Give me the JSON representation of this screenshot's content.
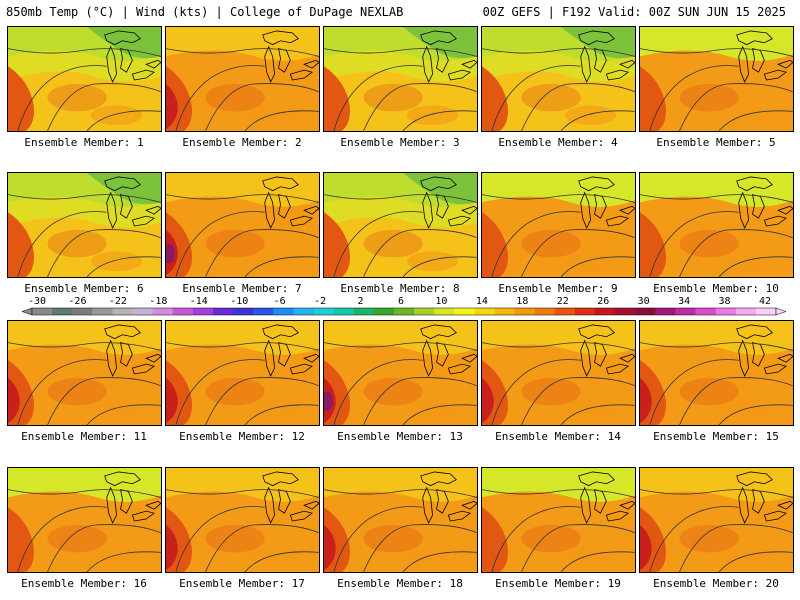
{
  "header": {
    "left": "850mb Temp (°C) | Wind (kts) | College of DuPage NEXLAB",
    "right": "00Z GEFS | F192 Valid: 00Z SUN JUN 15 2025"
  },
  "panels": [
    {
      "caption": "Ensemble Member: 1",
      "temp_theme": "cool"
    },
    {
      "caption": "Ensemble Member: 2",
      "temp_theme": "warm"
    },
    {
      "caption": "Ensemble Member: 3",
      "temp_theme": "cool"
    },
    {
      "caption": "Ensemble Member: 4",
      "temp_theme": "cool"
    },
    {
      "caption": "Ensemble Member: 5",
      "temp_theme": "mild"
    },
    {
      "caption": "Ensemble Member: 6",
      "temp_theme": "cool"
    },
    {
      "caption": "Ensemble Member: 7",
      "temp_theme": "warm"
    },
    {
      "caption": "Ensemble Member: 8",
      "temp_theme": "cool"
    },
    {
      "caption": "Ensemble Member: 9",
      "temp_theme": "mild"
    },
    {
      "caption": "Ensemble Member: 10",
      "temp_theme": "mild"
    },
    {
      "caption": "Ensemble Member: 11",
      "temp_theme": "warm"
    },
    {
      "caption": "Ensemble Member: 12",
      "temp_theme": "warm"
    },
    {
      "caption": "Ensemble Member: 13",
      "temp_theme": "warm"
    },
    {
      "caption": "Ensemble Member: 14",
      "temp_theme": "warm"
    },
    {
      "caption": "Ensemble Member: 15",
      "temp_theme": "warm"
    },
    {
      "caption": "Ensemble Member: 16",
      "temp_theme": "mild"
    },
    {
      "caption": "Ensemble Member: 17",
      "temp_theme": "warm"
    },
    {
      "caption": "Ensemble Member: 18",
      "temp_theme": "warm"
    },
    {
      "caption": "Ensemble Member: 19",
      "temp_theme": "mild"
    },
    {
      "caption": "Ensemble Member: 20",
      "temp_theme": "warm"
    }
  ],
  "colorbar": {
    "labels": [
      "-30",
      "-26",
      "-22",
      "-18",
      "-14",
      "-10",
      "-6",
      "-2",
      "2",
      "6",
      "10",
      "14",
      "18",
      "22",
      "26",
      "30",
      "34",
      "38",
      "42"
    ],
    "colors": [
      "#8a8a8a",
      "#5f7b6c",
      "#7d7d7d",
      "#9a9a9a",
      "#b4b4b4",
      "#c7b2d8",
      "#d58be0",
      "#c55ad6",
      "#a03ee0",
      "#6e2ad4",
      "#3d34d8",
      "#2a55e8",
      "#1e8cf0",
      "#22b4f0",
      "#1ccfd8",
      "#15c9a8",
      "#1cb36a",
      "#3aa42c",
      "#6fb52a",
      "#a7cf2a",
      "#d8e623",
      "#f5f516",
      "#f6d80e",
      "#f7b809",
      "#f59a08",
      "#f07a08",
      "#ea5410",
      "#dd2d14",
      "#c4161c",
      "#a5102a",
      "#8a0e3a",
      "#a01878",
      "#c02aa6",
      "#dc4ad0",
      "#ee78e6",
      "#f6a8f0",
      "#fad0f8"
    ]
  },
  "palette": {
    "cold": "#7cc23a",
    "cool": "#d6e628",
    "mild": "#f5c21a",
    "warm": "#f39a16",
    "hot": "#e25812",
    "vhot": "#c8201a",
    "extreme": "#8a1a66"
  }
}
